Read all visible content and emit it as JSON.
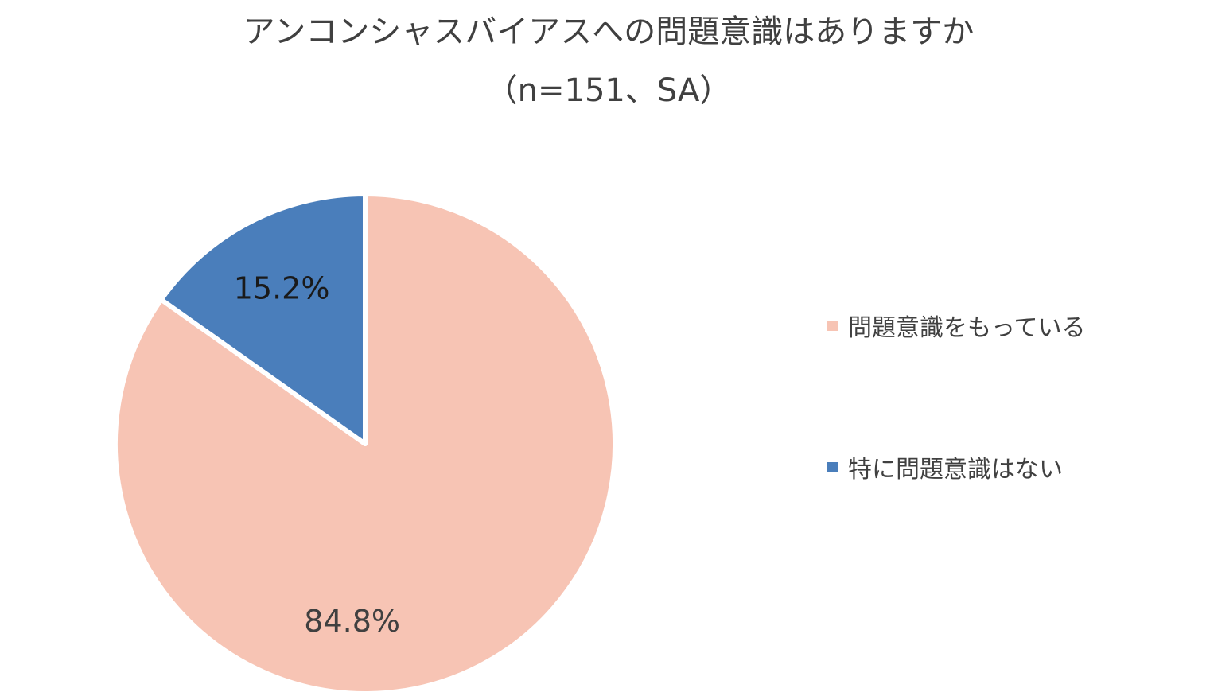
{
  "chart_data": {
    "type": "pie",
    "title": "アンコンシャスバイアスへの問題意識はありますか",
    "subtitle": "（n=151、SA）",
    "categories": [
      "問題意識をもっている",
      "特に問題意識はない"
    ],
    "values": [
      84.8,
      15.2
    ],
    "data_labels": [
      "84.8%",
      "15.2%"
    ],
    "colors": [
      "#F7C4B4",
      "#4A7EBB"
    ],
    "legend_position": "right",
    "start_angle": "12 o'clock",
    "direction": "clockwise"
  }
}
